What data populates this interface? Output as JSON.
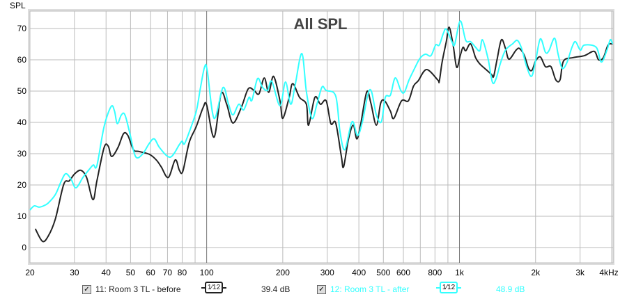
{
  "chart_data": {
    "type": "line",
    "title": "All SPL",
    "ylabel": "SPL",
    "xlabel": "",
    "xscale": "log",
    "xlim": [
      20,
      4000
    ],
    "ylim": [
      -5,
      75
    ],
    "grid": true,
    "yticks": [
      "0",
      "10",
      "20",
      "30",
      "40",
      "50",
      "60",
      "70"
    ],
    "ytick_values": [
      0,
      10,
      20,
      30,
      40,
      50,
      60,
      70
    ],
    "xticks": [
      {
        "v": 20,
        "label": "20"
      },
      {
        "v": 30,
        "label": "30"
      },
      {
        "v": 40,
        "label": "40"
      },
      {
        "v": 50,
        "label": "50"
      },
      {
        "v": 60,
        "label": "60"
      },
      {
        "v": 70,
        "label": "70"
      },
      {
        "v": 80,
        "label": "80"
      },
      {
        "v": 100,
        "label": "100"
      },
      {
        "v": 200,
        "label": "200"
      },
      {
        "v": 300,
        "label": "300"
      },
      {
        "v": 400,
        "label": "400"
      },
      {
        "v": 500,
        "label": "500"
      },
      {
        "v": 600,
        "label": "600"
      },
      {
        "v": 800,
        "label": "800"
      },
      {
        "v": 1000,
        "label": "1k"
      },
      {
        "v": 2000,
        "label": "2k"
      },
      {
        "v": 3000,
        "label": "3k"
      },
      {
        "v": 4000,
        "label": "4kHz"
      }
    ],
    "xgrid": [
      20,
      30,
      40,
      50,
      60,
      70,
      80,
      90,
      100,
      200,
      300,
      400,
      500,
      600,
      700,
      800,
      900,
      1000,
      2000,
      3000,
      4000
    ],
    "xgrid_major": [
      100,
      1000
    ],
    "series": [
      {
        "name": "11: Room 3 TL - before",
        "color": "#222222",
        "x": [
          21,
          22.4,
          23.6,
          25.2,
          27.2,
          28.6,
          30.1,
          31.8,
          33.5,
          35.5,
          36.8,
          39.3,
          40.8,
          42.1,
          44.6,
          46.9,
          48.8,
          51.3,
          54,
          59.3,
          63.2,
          66.1,
          70.5,
          75.1,
          78,
          80.5,
          85.3,
          91,
          96.8,
          100,
          107,
          114,
          120,
          127,
          137,
          146,
          154,
          161,
          169,
          176,
          184,
          195,
          200,
          212,
          219,
          233,
          248,
          253,
          268,
          282,
          297,
          310,
          324,
          341,
          348,
          364,
          380,
          393,
          407,
          430,
          446,
          469,
          488,
          506,
          533,
          550,
          590,
          628,
          658,
          687,
          741,
          820,
          832,
          853,
          887,
          910,
          944,
          975,
          1007,
          1033,
          1059,
          1107,
          1158,
          1203,
          1257,
          1340,
          1365,
          1409,
          1465,
          1521,
          1570,
          1675,
          1729,
          1807,
          1876,
          1937,
          2000,
          2089,
          2188,
          2301,
          2404,
          2500,
          2580,
          2820,
          3120,
          3410,
          3550,
          3710,
          3870,
          4030
        ],
        "y": [
          6.0,
          2.0,
          3.6,
          9.1,
          20.2,
          21.3,
          23.6,
          24.7,
          22.4,
          15.3,
          21.3,
          32.0,
          32.4,
          29.1,
          32.0,
          36.4,
          35.8,
          31.3,
          30.7,
          29.8,
          28.0,
          25.8,
          22.4,
          28.0,
          24.7,
          24.4,
          33.6,
          38.7,
          44.7,
          45.6,
          35.3,
          49.1,
          45.8,
          39.8,
          44.7,
          50.7,
          50.2,
          49.1,
          54.2,
          49.6,
          54.7,
          46.9,
          41.3,
          48.0,
          52.4,
          48.0,
          45.8,
          39.1,
          48.0,
          45.8,
          46.9,
          39.6,
          39.8,
          29.1,
          25.8,
          34.7,
          39.1,
          34.7,
          39.6,
          49.8,
          46.2,
          39.1,
          46.2,
          46.9,
          43.6,
          41.3,
          46.9,
          46.9,
          51.6,
          53.3,
          56.9,
          53.6,
          53.1,
          59.1,
          65.8,
          70.4,
          64.7,
          57.6,
          61.3,
          64.0,
          62.9,
          65.1,
          60.7,
          58.7,
          57.3,
          55.3,
          54.7,
          60.2,
          66.4,
          63.6,
          60.2,
          63.1,
          63.6,
          61.3,
          57.3,
          56.7,
          59.6,
          60.9,
          57.8,
          57.8,
          53.6,
          53.6,
          59.6,
          60.7,
          61.3,
          62.7,
          60.0,
          60.7,
          64.7,
          65.1
        ],
        "legend_value": "39.4 dB",
        "smoothing": "1/12"
      },
      {
        "name": "12: Room 3 TL - after",
        "color": "#33ffff",
        "x": [
          20,
          20.8,
          21.7,
          22.6,
          23.6,
          25.2,
          26.5,
          27.7,
          29.1,
          30.4,
          32.4,
          34.1,
          35.6,
          36.8,
          39.3,
          41.9,
          43.2,
          44.3,
          46,
          47.5,
          49.7,
          52.3,
          55.7,
          59.3,
          62.1,
          65.3,
          71.8,
          78,
          80,
          81.6,
          85.3,
          91,
          94.4,
          98.2,
          100.6,
          107,
          116,
          122,
          127,
          134,
          140,
          147,
          151,
          159,
          166,
          174,
          181,
          195,
          205,
          215,
          224,
          238,
          248,
          261,
          273,
          286,
          297,
          324,
          337,
          352,
          376,
          395,
          413,
          435,
          449,
          469,
          491,
          509,
          533,
          557,
          586,
          605,
          632,
          665,
          697,
          733,
          771,
          805,
          832,
          863,
          887,
          933,
          957,
          1007,
          1059,
          1107,
          1158,
          1203,
          1233,
          1297,
          1349,
          1393,
          1455,
          1521,
          1622,
          1694,
          1762,
          1841,
          1927,
          2000,
          2089,
          2188,
          2259,
          2377,
          2455,
          2547,
          2660,
          2786,
          2877,
          3006,
          3120,
          3475,
          3640,
          3830,
          3950,
          4030
        ],
        "y": [
          12.0,
          13.3,
          12.9,
          13.3,
          14.2,
          16.9,
          20.9,
          23.6,
          21.8,
          19.1,
          22.4,
          24.7,
          26.4,
          26.2,
          38.7,
          45.1,
          43.6,
          39.6,
          42.4,
          42.4,
          36.4,
          29.1,
          29.8,
          33.3,
          34.7,
          31.8,
          28.9,
          32.9,
          34.0,
          33.1,
          36.9,
          43.6,
          50.9,
          57.8,
          56.4,
          41.3,
          51.1,
          45.8,
          42.4,
          45.8,
          44.0,
          48.0,
          47.1,
          54.0,
          51.3,
          50.2,
          53.1,
          45.3,
          52.9,
          45.8,
          52.0,
          62.0,
          49.8,
          41.3,
          45.8,
          51.3,
          50.2,
          48.4,
          36.9,
          31.3,
          40.2,
          35.8,
          40.2,
          49.1,
          49.8,
          42.4,
          40.2,
          48.0,
          48.7,
          54.2,
          50.2,
          49.6,
          53.6,
          57.3,
          60.4,
          61.8,
          61.3,
          64.7,
          64.7,
          68.4,
          69.8,
          65.8,
          64.9,
          72.4,
          66.2,
          65.8,
          64.0,
          62.9,
          66.4,
          60.4,
          52.9,
          53.8,
          59.1,
          63.1,
          65.1,
          66.2,
          63.6,
          58.0,
          54.7,
          59.6,
          66.7,
          62.4,
          62.9,
          66.9,
          61.8,
          57.3,
          59.1,
          64.0,
          65.8,
          63.1,
          64.7,
          64.0,
          59.3,
          63.1,
          66.4,
          65.1
        ],
        "legend_value": "48.9 dB",
        "smoothing": "1/12"
      }
    ]
  },
  "legend": [
    {
      "checked": "✓",
      "label": "11: Room 3 TL - before",
      "smoothing": "1⁄12",
      "value": "39.4 dB"
    },
    {
      "checked": "✓",
      "label": "12: Room 3 TL - after",
      "smoothing": "1⁄12",
      "value": "48.9 dB"
    }
  ]
}
